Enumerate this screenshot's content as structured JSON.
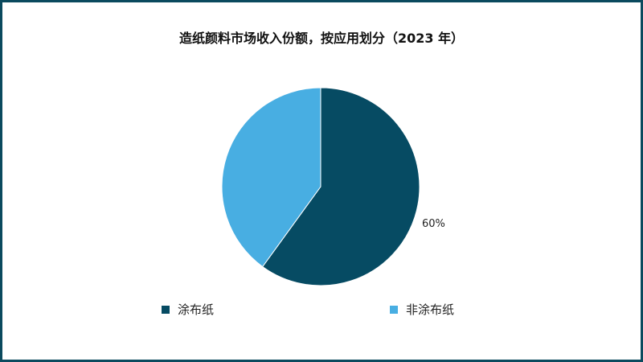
{
  "chart_data": {
    "type": "pie",
    "title": "造纸颜料市场收入份额，按应用划分（2023 年）",
    "slices": [
      {
        "name": "涂布纸",
        "value": 60,
        "label": "60%",
        "color": "#064b63"
      },
      {
        "name": "非涂布纸",
        "value": 40,
        "label": "",
        "color": "#48aee2"
      }
    ],
    "legend_position": "bottom"
  },
  "colors": {
    "border": "#0b4a5e"
  }
}
